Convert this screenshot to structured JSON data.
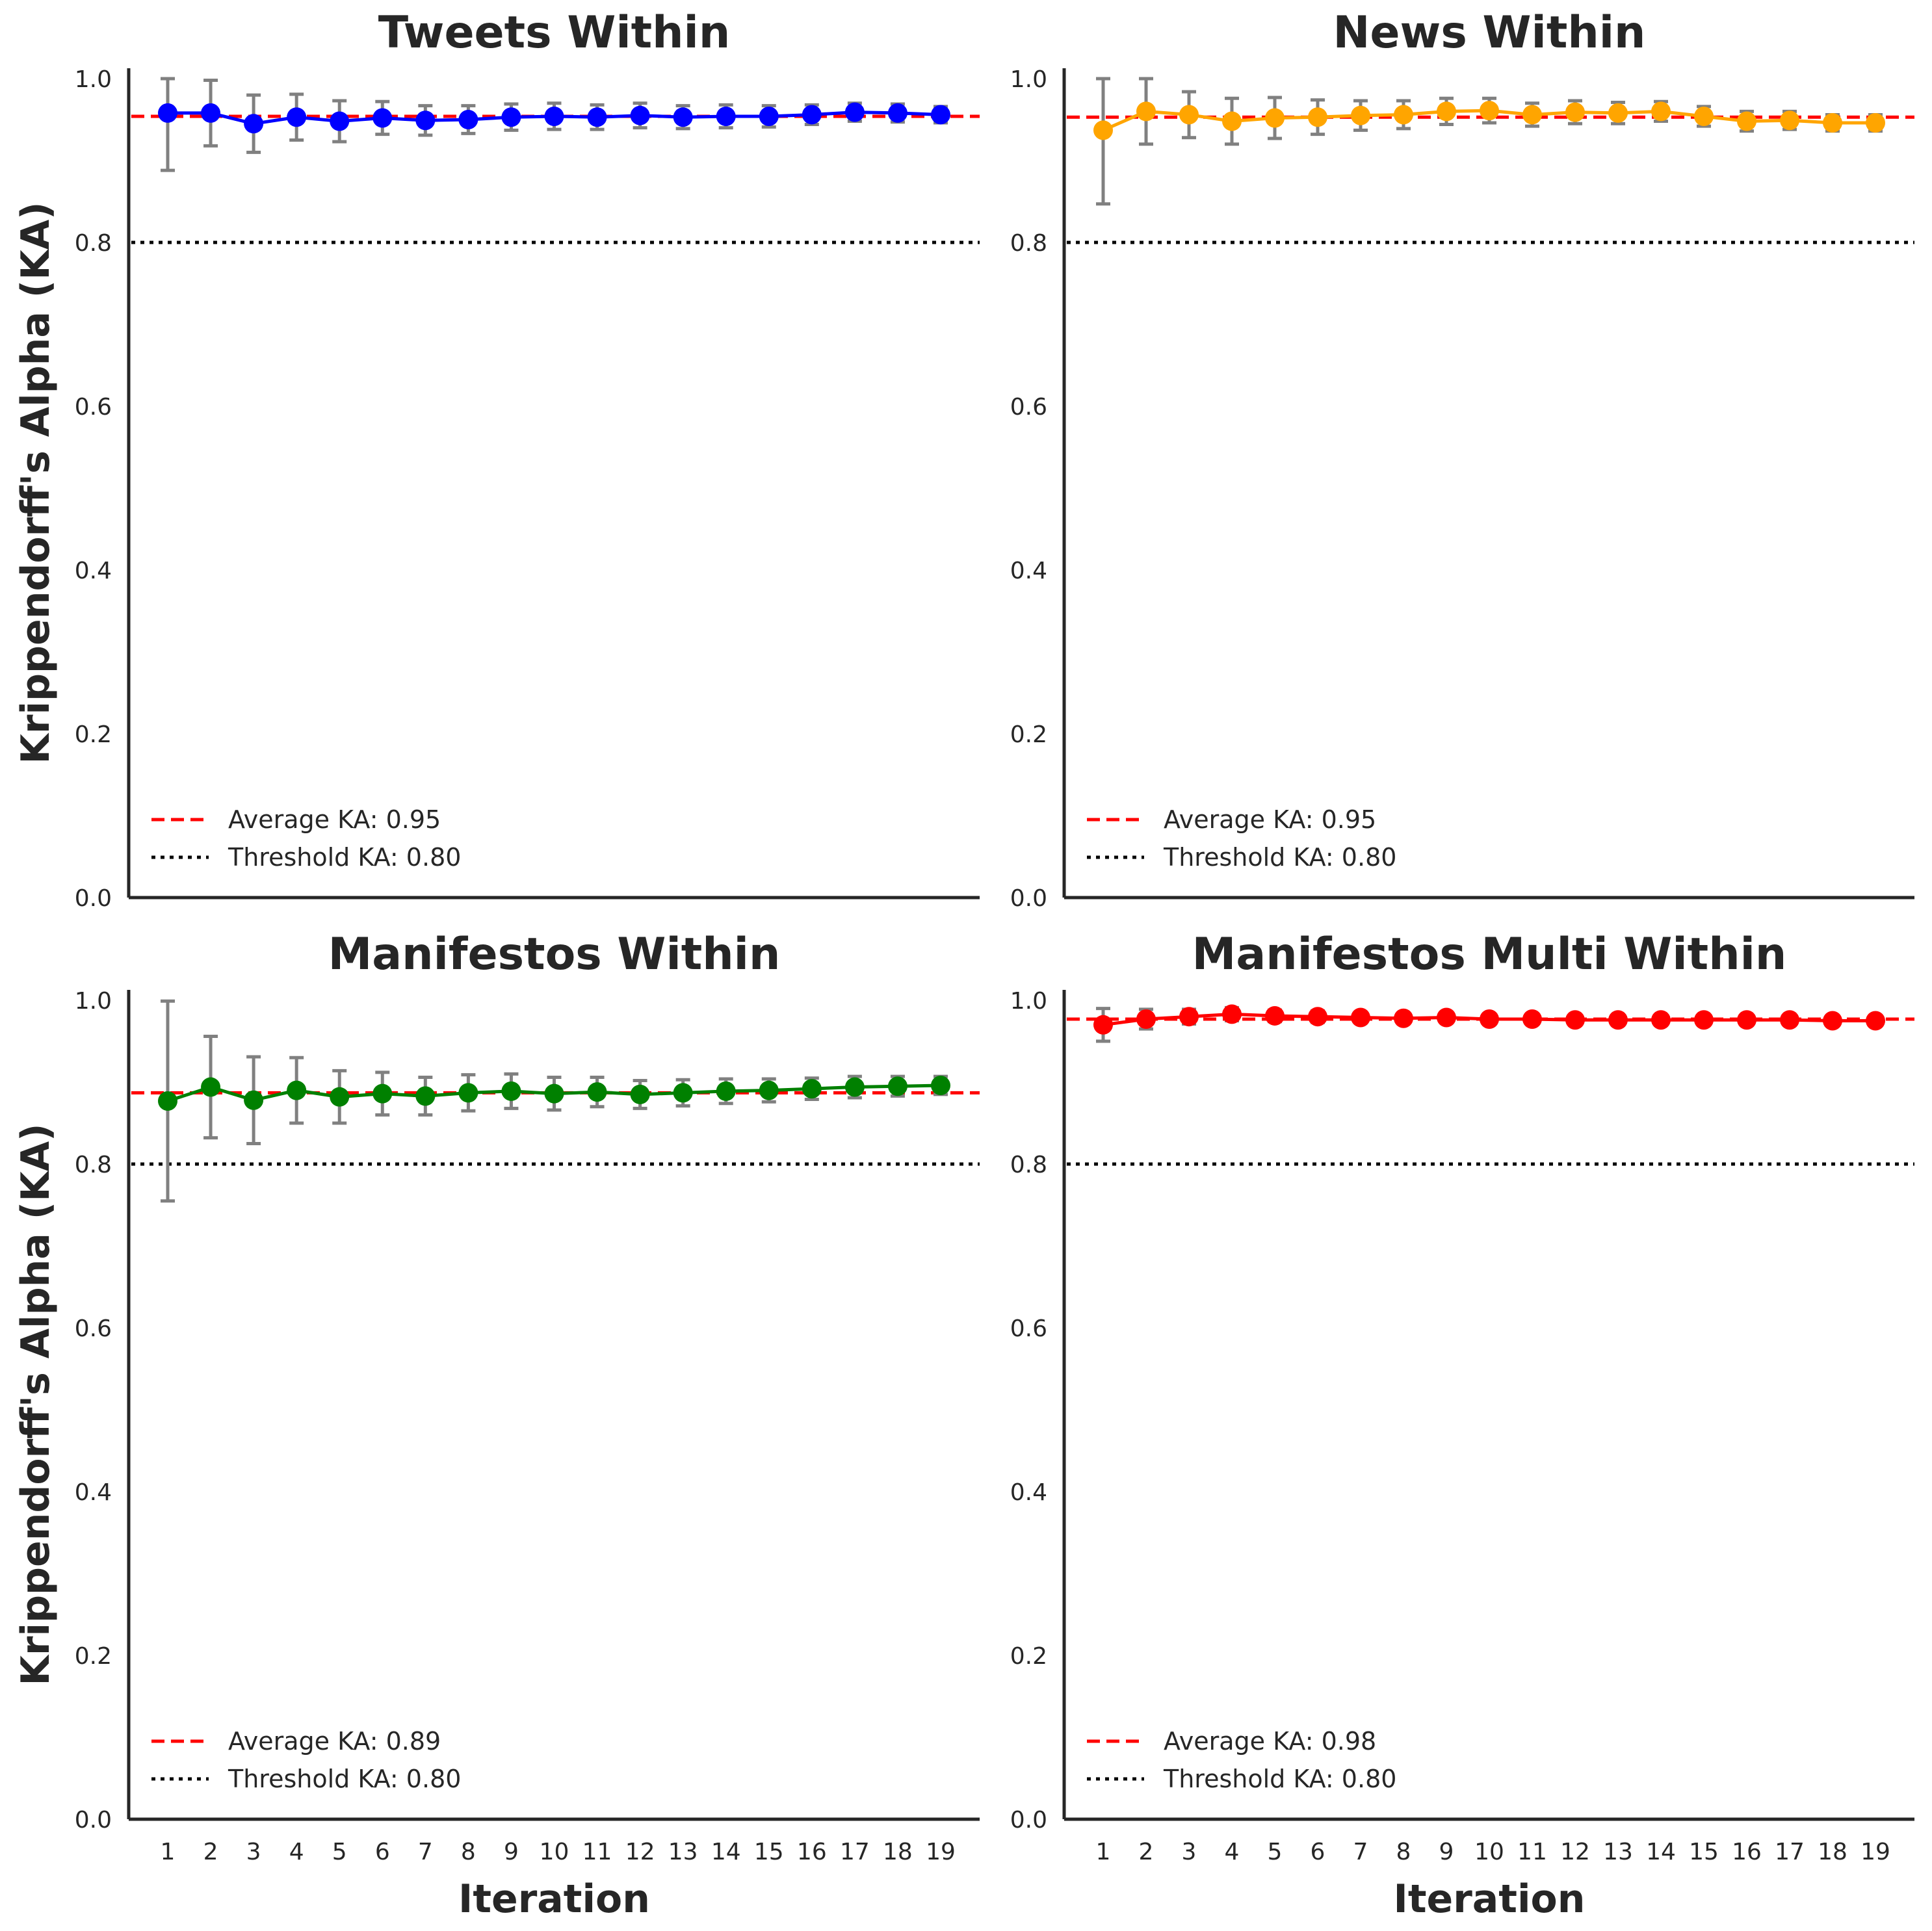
{
  "figure": {
    "ylabel": "Krippendorff's Alpha (KA)",
    "xlabel": "Iteration"
  },
  "chart_data": [
    {
      "type": "line",
      "title": "Tweets Within",
      "color": "#0000ff",
      "xlabel": "",
      "ylabel": "Krippendorff's Alpha (KA)",
      "x": [
        1,
        2,
        3,
        4,
        5,
        6,
        7,
        8,
        9,
        10,
        11,
        12,
        13,
        14,
        15,
        16,
        17,
        18,
        19
      ],
      "ylim": [
        0,
        1.0
      ],
      "yticks": [
        "0.0",
        "0.2",
        "0.4",
        "0.6",
        "0.8",
        "1.0"
      ],
      "values": [
        0.958,
        0.958,
        0.945,
        0.953,
        0.948,
        0.952,
        0.949,
        0.95,
        0.953,
        0.954,
        0.953,
        0.955,
        0.953,
        0.954,
        0.954,
        0.956,
        0.959,
        0.958,
        0.956
      ],
      "err": [
        0.07,
        0.04,
        0.035,
        0.028,
        0.025,
        0.02,
        0.018,
        0.017,
        0.016,
        0.016,
        0.015,
        0.015,
        0.014,
        0.014,
        0.013,
        0.012,
        0.011,
        0.011,
        0.01
      ],
      "average": 0.954,
      "threshold": 0.8,
      "legend": [
        "Average KA: 0.95",
        "Threshold KA: 0.80"
      ]
    },
    {
      "type": "line",
      "title": "News Within",
      "color": "#ffa500",
      "xlabel": "",
      "ylabel": "",
      "x": [
        1,
        2,
        3,
        4,
        5,
        6,
        7,
        8,
        9,
        10,
        11,
        12,
        13,
        14,
        15,
        16,
        17,
        18,
        19
      ],
      "ylim": [
        0,
        1.0
      ],
      "yticks": [
        "0.0",
        "0.2",
        "0.4",
        "0.6",
        "0.8",
        "1.0"
      ],
      "values": [
        0.937,
        0.96,
        0.956,
        0.948,
        0.952,
        0.953,
        0.955,
        0.956,
        0.96,
        0.961,
        0.956,
        0.959,
        0.958,
        0.96,
        0.954,
        0.948,
        0.949,
        0.946,
        0.946
      ],
      "err": [
        0.09,
        0.04,
        0.028,
        0.028,
        0.025,
        0.021,
        0.018,
        0.017,
        0.016,
        0.015,
        0.014,
        0.014,
        0.013,
        0.012,
        0.012,
        0.012,
        0.011,
        0.01,
        0.01
      ],
      "average": 0.953,
      "threshold": 0.8,
      "legend": [
        "Average KA: 0.95",
        "Threshold KA: 0.80"
      ]
    },
    {
      "type": "line",
      "title": "Manifestos Within",
      "color": "#008000",
      "xlabel": "Iteration",
      "ylabel": "Krippendorff's Alpha (KA)",
      "x": [
        1,
        2,
        3,
        4,
        5,
        6,
        7,
        8,
        9,
        10,
        11,
        12,
        13,
        14,
        15,
        16,
        17,
        18,
        19
      ],
      "ylim": [
        0,
        1.0
      ],
      "yticks": [
        "0.0",
        "0.2",
        "0.4",
        "0.6",
        "0.8",
        "1.0"
      ],
      "values": [
        0.877,
        0.894,
        0.878,
        0.89,
        0.882,
        0.886,
        0.883,
        0.887,
        0.889,
        0.886,
        0.888,
        0.885,
        0.887,
        0.889,
        0.89,
        0.892,
        0.894,
        0.895,
        0.896
      ],
      "err": [
        0.122,
        0.062,
        0.053,
        0.04,
        0.032,
        0.026,
        0.023,
        0.022,
        0.021,
        0.02,
        0.018,
        0.017,
        0.016,
        0.015,
        0.014,
        0.013,
        0.013,
        0.012,
        0.011
      ],
      "average": 0.887,
      "threshold": 0.8,
      "legend": [
        "Average KA: 0.89",
        "Threshold KA: 0.80"
      ]
    },
    {
      "type": "line",
      "title": "Manifestos Multi Within",
      "color": "#ff0000",
      "xlabel": "Iteration",
      "ylabel": "",
      "x": [
        1,
        2,
        3,
        4,
        5,
        6,
        7,
        8,
        9,
        10,
        11,
        12,
        13,
        14,
        15,
        16,
        17,
        18,
        19
      ],
      "ylim": [
        0,
        1.0
      ],
      "yticks": [
        "0.0",
        "0.2",
        "0.4",
        "0.6",
        "0.8",
        "1.0"
      ],
      "values": [
        0.97,
        0.977,
        0.98,
        0.983,
        0.981,
        0.98,
        0.979,
        0.978,
        0.979,
        0.977,
        0.977,
        0.976,
        0.976,
        0.976,
        0.976,
        0.976,
        0.976,
        0.975,
        0.975
      ],
      "err": [
        0.02,
        0.012,
        0.009,
        0.008,
        0.007,
        0.007,
        0.006,
        0.006,
        0.006,
        0.005,
        0.005,
        0.005,
        0.005,
        0.005,
        0.005,
        0.005,
        0.005,
        0.005,
        0.005
      ],
      "average": 0.977,
      "threshold": 0.8,
      "legend": [
        "Average KA: 0.98",
        "Threshold KA: 0.80"
      ]
    }
  ]
}
